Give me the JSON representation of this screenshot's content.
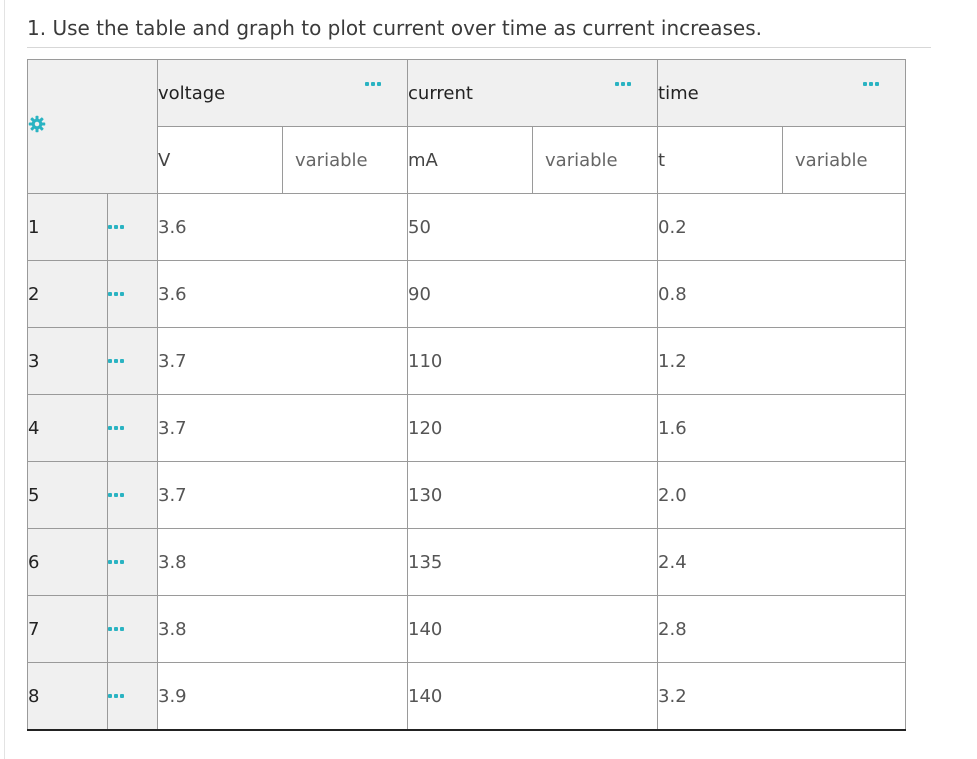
{
  "question": "1. Use the table and graph to plot current over time as current increases.",
  "colors": {
    "accent": "#2ab3c2",
    "header_bg": "#f0f0f0"
  },
  "icons": {
    "settings": "gear-icon",
    "menu": "ellipsis-icon"
  },
  "table": {
    "columns": [
      {
        "name": "voltage",
        "unit": "V",
        "type": "variable"
      },
      {
        "name": "current",
        "unit": "mA",
        "type": "variable"
      },
      {
        "name": "time",
        "unit": "t",
        "type": "variable"
      }
    ],
    "rows": [
      {
        "n": "1",
        "v": "3.6",
        "c": "50",
        "t": "0.2"
      },
      {
        "n": "2",
        "v": "3.6",
        "c": "90",
        "t": "0.8"
      },
      {
        "n": "3",
        "v": "3.7",
        "c": "110",
        "t": "1.2"
      },
      {
        "n": "4",
        "v": "3.7",
        "c": "120",
        "t": "1.6"
      },
      {
        "n": "5",
        "v": "3.7",
        "c": "130",
        "t": "2.0"
      },
      {
        "n": "6",
        "v": "3.8",
        "c": "135",
        "t": "2.4"
      },
      {
        "n": "7",
        "v": "3.8",
        "c": "140",
        "t": "2.8"
      },
      {
        "n": "8",
        "v": "3.9",
        "c": "140",
        "t": "3.2"
      }
    ]
  }
}
